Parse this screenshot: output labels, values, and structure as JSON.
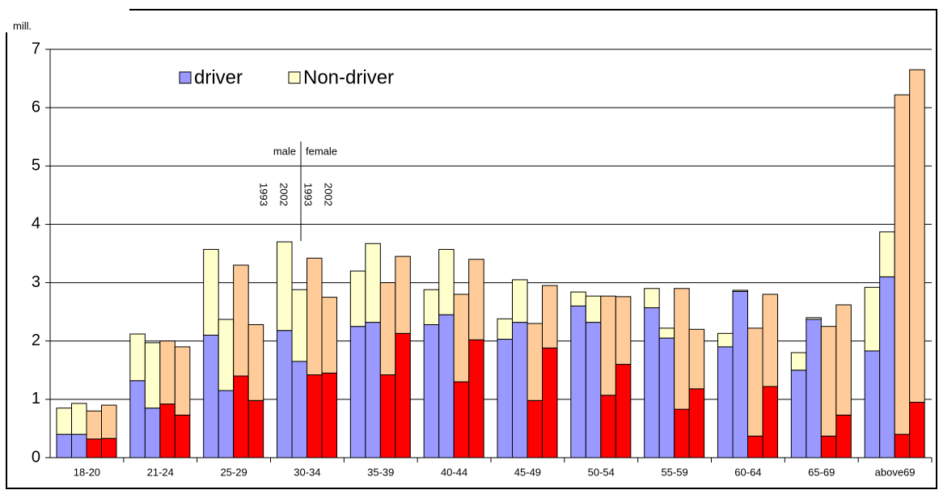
{
  "chart_data": {
    "type": "grouped-stacked-bar",
    "ylabel": "mill.",
    "categories": [
      "18-20",
      "21-24",
      "25-29",
      "30-34",
      "35-39",
      "40-44",
      "45-49",
      "50-54",
      "55-59",
      "60-64",
      "65-69",
      "above69"
    ],
    "annotation": {
      "sexes": [
        "male",
        "female"
      ],
      "years": [
        "1993",
        "2002",
        "1993",
        "2002"
      ]
    },
    "series": [
      {
        "name": "driver",
        "colors": [
          "#9999ff",
          "#9999ff",
          "#ff0000",
          "#ff0000"
        ],
        "values": [
          [
            0.4,
            0.4,
            0.32,
            0.33
          ],
          [
            1.32,
            0.85,
            0.92,
            0.73
          ],
          [
            2.1,
            1.15,
            1.4,
            0.98
          ],
          [
            2.18,
            1.65,
            1.42,
            1.45
          ],
          [
            2.25,
            2.32,
            1.42,
            2.13
          ],
          [
            2.28,
            2.45,
            1.3,
            2.02
          ],
          [
            2.03,
            2.32,
            0.98,
            1.88
          ],
          [
            2.6,
            2.32,
            1.07,
            1.6
          ],
          [
            2.57,
            2.05,
            0.83,
            1.18
          ],
          [
            1.9,
            2.85,
            0.37,
            1.22
          ],
          [
            1.5,
            2.37,
            0.37,
            0.73
          ],
          [
            1.83,
            3.1,
            0.4,
            0.95
          ]
        ]
      },
      {
        "name": "Non-driver",
        "colors": [
          "#ffffcc",
          "#ffffcc",
          "#ffcc99",
          "#ffcc99"
        ],
        "values": [
          [
            0.45,
            0.53,
            0.48,
            0.57
          ],
          [
            0.8,
            1.12,
            1.08,
            1.17
          ],
          [
            1.47,
            1.22,
            1.9,
            1.3
          ],
          [
            1.52,
            1.23,
            2.0,
            1.3
          ],
          [
            0.95,
            1.35,
            1.58,
            1.32
          ],
          [
            0.6,
            1.12,
            1.5,
            1.38
          ],
          [
            0.35,
            0.73,
            1.32,
            1.07
          ],
          [
            0.24,
            0.45,
            1.7,
            1.16
          ],
          [
            0.33,
            0.17,
            2.07,
            1.02
          ],
          [
            0.23,
            0.02,
            1.85,
            1.58
          ],
          [
            0.3,
            0.03,
            1.88,
            1.89
          ],
          [
            1.09,
            0.77,
            5.82,
            5.7
          ]
        ]
      }
    ],
    "ylim": [
      0,
      7
    ],
    "yticks": [
      0,
      1,
      2,
      3,
      4,
      5,
      6,
      7
    ],
    "grid": true,
    "legend": "top-left"
  }
}
